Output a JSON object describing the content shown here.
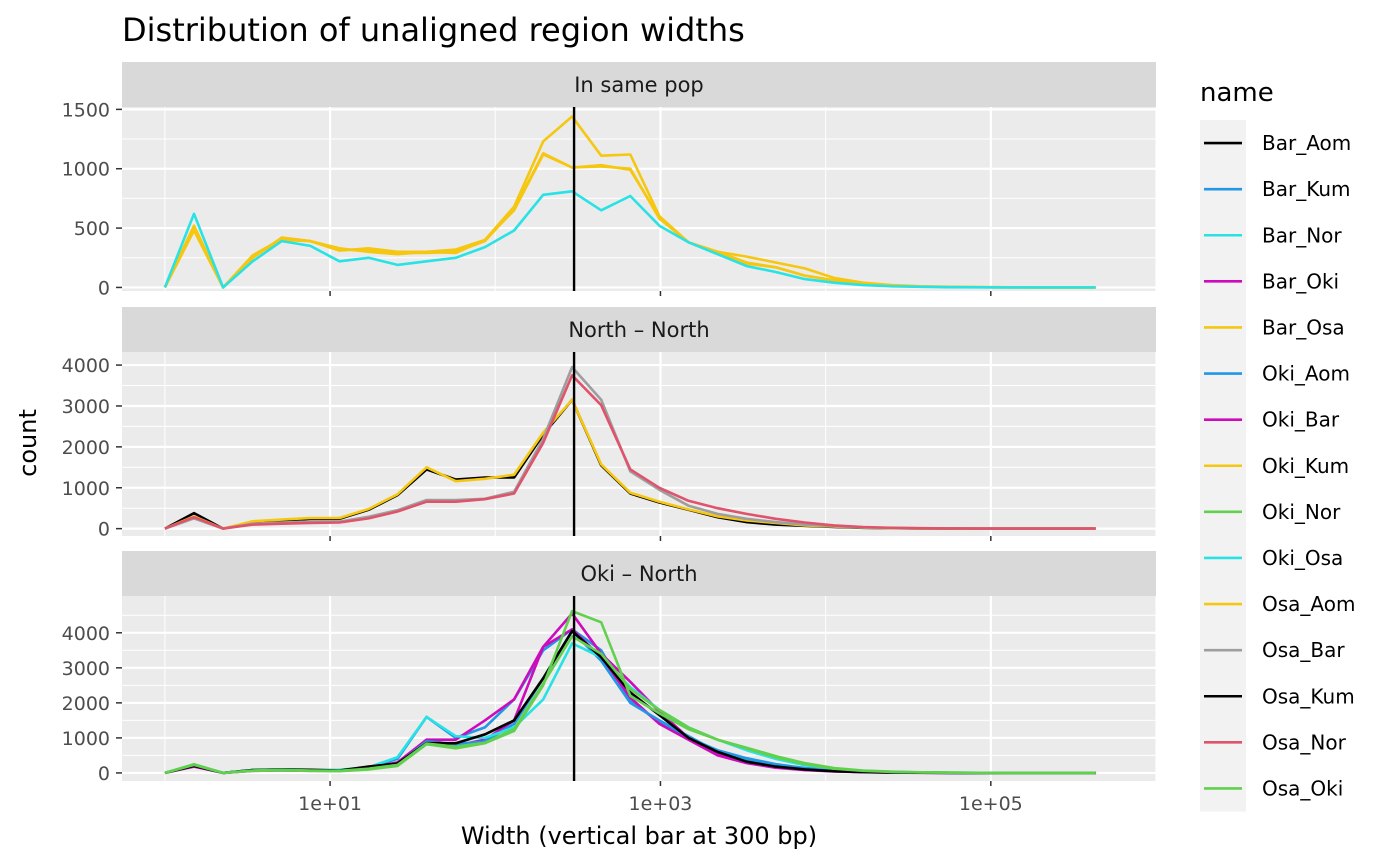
{
  "chart_data": {
    "type": "line",
    "title": "Distribution of unaligned region widths",
    "xlabel": "Width (vertical bar at 300 bp)",
    "ylabel": "count",
    "x_scale": "log10",
    "x_ticks": [
      10,
      1000,
      100000
    ],
    "x_tick_labels": [
      "1e+01",
      "1e+03",
      "1e+05"
    ],
    "vline_x": 300,
    "x": [
      1,
      1.5,
      2.25,
      3.4,
      5.1,
      7.6,
      11.4,
      17.1,
      25.6,
      38.4,
      57.7,
      86.5,
      130,
      195,
      292,
      438,
      657,
      985,
      1478,
      2217,
      3325,
      4988,
      7482,
      11223,
      16834,
      25251,
      37877,
      56815,
      85223,
      127834,
      191751,
      287627,
      431440
    ],
    "legend": {
      "title": "name",
      "entries": [
        {
          "label": "Bar_Aom",
          "color": "#000000"
        },
        {
          "label": "Bar_Kum",
          "color": "#2297E6"
        },
        {
          "label": "Bar_Nor",
          "color": "#28E2E5"
        },
        {
          "label": "Bar_Oki",
          "color": "#CD0BBC"
        },
        {
          "label": "Bar_Osa",
          "color": "#F5C710"
        },
        {
          "label": "Oki_Aom",
          "color": "#2297E6"
        },
        {
          "label": "Oki_Bar",
          "color": "#CD0BBC"
        },
        {
          "label": "Oki_Kum",
          "color": "#F5C710"
        },
        {
          "label": "Oki_Nor",
          "color": "#61D04F"
        },
        {
          "label": "Oki_Osa",
          "color": "#28E2E5"
        },
        {
          "label": "Osa_Aom",
          "color": "#F5C710"
        },
        {
          "label": "Osa_Bar",
          "color": "#9E9E9E"
        },
        {
          "label": "Osa_Kum",
          "color": "#000000"
        },
        {
          "label": "Osa_Nor",
          "color": "#DF536B"
        },
        {
          "label": "Osa_Oki",
          "color": "#61D04F"
        }
      ]
    },
    "panels": [
      {
        "strip": "In same pop",
        "ylim": [
          -30,
          1520
        ],
        "y_ticks": [
          0,
          500,
          1000,
          1500
        ],
        "series": [
          {
            "name": "Bar_Osa",
            "values": [
              0,
              480,
              0,
              270,
              410,
              390,
              330,
              300,
              280,
              300,
              290,
              400,
              680,
              1230,
              1440,
              1110,
              1120,
              600,
              380,
              300,
              200,
              170,
              100,
              60,
              30,
              15,
              8,
              4,
              2,
              1,
              0,
              0,
              0
            ]
          },
          {
            "name": "Oki_Kum",
            "values": [
              0,
              520,
              0,
              250,
              420,
              390,
              310,
              330,
              300,
              300,
              320,
              400,
              650,
              1120,
              1010,
              1020,
              1000,
              580,
              380,
              300,
              210,
              170,
              100,
              60,
              30,
              15,
              8,
              4,
              2,
              1,
              0,
              0,
              0
            ]
          },
          {
            "name": "Osa_Aom",
            "values": [
              0,
              500,
              0,
              260,
              400,
              390,
              320,
              310,
              290,
              290,
              300,
              390,
              660,
              1130,
              1010,
              1030,
              990,
              590,
              380,
              300,
              260,
              210,
              160,
              80,
              40,
              20,
              10,
              5,
              2,
              1,
              0,
              0,
              0
            ]
          },
          {
            "name": "Bar_Nor",
            "values": [
              0,
              620,
              0,
              220,
              390,
              350,
              220,
              250,
              190,
              220,
              250,
              340,
              480,
              780,
              810,
              650,
              770,
              520,
              380,
              280,
              180,
              130,
              70,
              40,
              20,
              10,
              5,
              2,
              1,
              0,
              0,
              0,
              0
            ]
          }
        ]
      },
      {
        "strip": "North – North",
        "ylim": [
          -180,
          4320
        ],
        "y_ticks": [
          0,
          1000,
          2000,
          3000,
          4000
        ],
        "series": [
          {
            "name": "Bar_Aom",
            "values": [
              0,
              380,
              0,
              150,
              200,
              240,
              240,
              460,
              820,
              1450,
              1200,
              1250,
              1250,
              2300,
              3150,
              1550,
              860,
              640,
              460,
              280,
              160,
              100,
              70,
              40,
              20,
              10,
              5,
              2,
              1,
              0,
              0,
              0,
              0
            ]
          },
          {
            "name": "Bar_Osa",
            "values": [
              0,
              300,
              0,
              180,
              220,
              260,
              260,
              480,
              840,
              1500,
              1160,
              1220,
              1320,
              2350,
              3150,
              1570,
              880,
              660,
              470,
              300,
              200,
              140,
              80,
              50,
              25,
              12,
              6,
              3,
              1,
              0,
              0,
              0,
              0
            ]
          },
          {
            "name": "Osa_Bar",
            "values": [
              0,
              250,
              0,
              120,
              150,
              170,
              170,
              290,
              450,
              700,
              700,
              730,
              900,
              2200,
              3950,
              3150,
              1400,
              950,
              560,
              360,
              240,
              160,
              100,
              60,
              30,
              15,
              8,
              4,
              2,
              1,
              0,
              0,
              0
            ]
          },
          {
            "name": "Osa_Nor",
            "values": [
              0,
              280,
              0,
              100,
              120,
              140,
              150,
              250,
              420,
              660,
              660,
              720,
              860,
              2100,
              3750,
              3020,
              1450,
              1000,
              680,
              500,
              360,
              240,
              150,
              80,
              40,
              20,
              10,
              5,
              2,
              1,
              0,
              0,
              0
            ]
          }
        ]
      },
      {
        "strip": "Oki – North",
        "ylim": [
          -230,
          5050
        ],
        "y_ticks": [
          0,
          1000,
          2000,
          3000,
          4000
        ],
        "series": [
          {
            "name": "Oki_Aom",
            "values": [
              0,
              200,
              0,
              80,
              100,
              80,
              70,
              160,
              400,
              1600,
              1000,
              1300,
              2100,
              3500,
              4100,
              3500,
              2050,
              1450,
              1000,
              650,
              420,
              250,
              140,
              80,
              40,
              20,
              10,
              5,
              2,
              1,
              0,
              0,
              0
            ]
          },
          {
            "name": "Oki_Bar",
            "values": [
              0,
              180,
              0,
              70,
              90,
              70,
              80,
              150,
              300,
              950,
              950,
              1500,
              2100,
              3600,
              4550,
              3400,
              2600,
              1750,
              1000,
              550,
              300,
              160,
              90,
              50,
              25,
              12,
              6,
              3,
              1,
              0,
              0,
              0,
              0
            ]
          },
          {
            "name": "Bar_Oki",
            "values": [
              0,
              200,
              0,
              60,
              70,
              60,
              60,
              120,
              250,
              950,
              780,
              950,
              1500,
              3600,
              4100,
              3300,
              2150,
              1400,
              950,
              500,
              280,
              150,
              80,
              40,
              20,
              10,
              5,
              2,
              1,
              0,
              0,
              0,
              0
            ]
          },
          {
            "name": "Bar_Kum",
            "values": [
              0,
              220,
              0,
              80,
              100,
              80,
              60,
              130,
              250,
              900,
              820,
              900,
              1400,
              2700,
              4050,
              3200,
              2000,
              1500,
              1050,
              600,
              350,
              200,
              120,
              60,
              30,
              15,
              8,
              4,
              2,
              1,
              0,
              0,
              0
            ]
          },
          {
            "name": "Oki_Osa",
            "values": [
              0,
              240,
              0,
              80,
              100,
              80,
              90,
              160,
              450,
              1600,
              1050,
              1000,
              1300,
              2100,
              3700,
              3300,
              2450,
              1800,
              1300,
              950,
              650,
              400,
              220,
              120,
              60,
              30,
              15,
              8,
              4,
              2,
              1,
              0,
              0
            ]
          },
          {
            "name": "Osa_Kum",
            "values": [
              0,
              200,
              0,
              80,
              100,
              90,
              70,
              180,
              270,
              850,
              850,
              1100,
              1500,
              2700,
              4050,
              3300,
              2300,
              1650,
              1000,
              600,
              320,
              180,
              100,
              50,
              25,
              12,
              6,
              3,
              1,
              0,
              0,
              0,
              0
            ]
          },
          {
            "name": "Oki_Nor",
            "values": [
              0,
              230,
              0,
              60,
              70,
              60,
              50,
              100,
              200,
              820,
              700,
              850,
              1200,
              2500,
              4620,
              4300,
              2200,
              1700,
              1250,
              950,
              700,
              450,
              250,
              120,
              60,
              30,
              15,
              8,
              4,
              2,
              1,
              0,
              0
            ]
          },
          {
            "name": "Osa_Oki",
            "values": [
              0,
              250,
              0,
              70,
              90,
              70,
              60,
              120,
              230,
              840,
              750,
              860,
              1250,
              2550,
              3900,
              3400,
              2400,
              1800,
              1300,
              950,
              720,
              480,
              280,
              140,
              70,
              35,
              18,
              9,
              4,
              2,
              1,
              0,
              0
            ]
          }
        ]
      }
    ]
  }
}
